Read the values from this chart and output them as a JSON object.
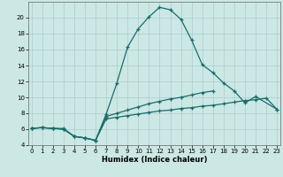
{
  "xlabel": "Humidex (Indice chaleur)",
  "bg_color": "#cce8e4",
  "line_color": "#1a6b6b",
  "grid_color": "#aacccc",
  "x_values": [
    0,
    1,
    2,
    3,
    4,
    5,
    6,
    7,
    8,
    9,
    10,
    11,
    12,
    13,
    14,
    15,
    16,
    17,
    18,
    19,
    20,
    21,
    22,
    23
  ],
  "curve1": [
    6.1,
    6.2,
    6.1,
    6.1,
    5.1,
    4.9,
    4.6,
    7.9,
    11.8,
    16.3,
    18.6,
    20.1,
    21.3,
    21.0,
    19.8,
    17.2,
    14.1,
    13.1,
    11.8,
    10.8,
    9.3,
    10.1,
    null,
    8.5
  ],
  "curve2": [
    6.1,
    6.2,
    6.1,
    6.0,
    5.1,
    4.9,
    4.6,
    7.6,
    8.0,
    8.4,
    8.8,
    9.2,
    9.5,
    9.8,
    10.0,
    10.3,
    10.6,
    10.8,
    null,
    null,
    null,
    null,
    null,
    null
  ],
  "curve3": [
    6.1,
    6.2,
    6.1,
    6.0,
    5.1,
    4.9,
    4.6,
    7.3,
    7.5,
    7.7,
    7.9,
    8.1,
    8.3,
    8.4,
    8.6,
    8.7,
    8.9,
    9.0,
    9.2,
    9.4,
    9.6,
    9.7,
    9.9,
    8.5
  ],
  "xlim": [
    -0.3,
    23.3
  ],
  "ylim": [
    4,
    22
  ],
  "yticks": [
    4,
    6,
    8,
    10,
    12,
    14,
    16,
    18,
    20
  ],
  "xticks": [
    0,
    1,
    2,
    3,
    4,
    5,
    6,
    7,
    8,
    9,
    10,
    11,
    12,
    13,
    14,
    15,
    16,
    17,
    18,
    19,
    20,
    21,
    22,
    23
  ]
}
